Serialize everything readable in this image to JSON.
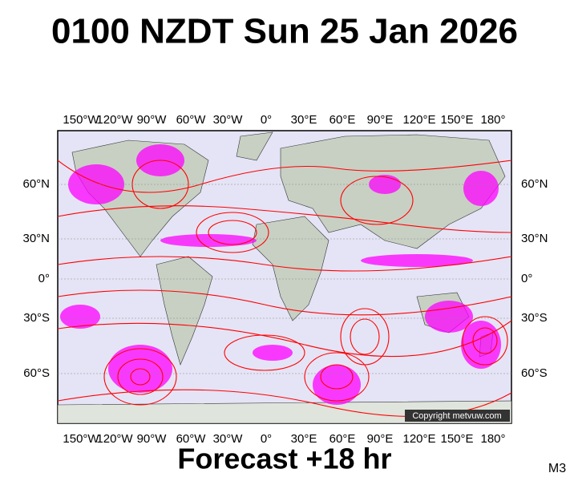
{
  "header": {
    "title": "0100 NZDT Sun 25 Jan 2026"
  },
  "map": {
    "lon_labels": [
      "150°W",
      "120°W",
      "90°W",
      "60°W",
      "30°W",
      "0°",
      "30°E",
      "60°E",
      "90°E",
      "120°E",
      "150°E",
      "180°"
    ],
    "lat_labels": [
      "60°N",
      "30°N",
      "0°",
      "30°S",
      "60°S"
    ],
    "copyright": "Copyright metvuw.com"
  },
  "footer": {
    "forecast": "Forecast +18 hr",
    "model": "M3"
  }
}
